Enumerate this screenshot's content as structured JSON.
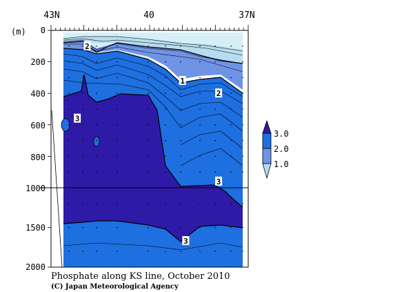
{
  "chart_data": {
    "type": "contour",
    "title": "Phosphate along KS line, October 2010",
    "credit": "(C) Japan Meteorological Agency",
    "x_axis": {
      "tick_labels": [
        "43N",
        "40",
        "37N"
      ],
      "tick_values": [
        43,
        40,
        37
      ],
      "range": [
        43,
        37
      ]
    },
    "y_axis": {
      "unit_label": "(m)",
      "tick_labels": [
        "0",
        "200",
        "400",
        "600",
        "800",
        "1000",
        "1500",
        "2000"
      ],
      "tick_values": [
        0,
        200,
        400,
        600,
        800,
        1000,
        1500,
        2000
      ],
      "range": [
        0,
        2000
      ],
      "scale_break_at": 1000
    },
    "colorbar": {
      "labels": [
        "3.0",
        "2.0",
        "1.0"
      ],
      "levels": [
        3.0,
        2.0,
        1.0
      ],
      "colors": [
        "#2e1aa6",
        "#1e6fe0",
        "#6f94e6",
        "#b7dcef"
      ]
    },
    "contour_labels": [
      {
        "text": "2",
        "lat": 41.9,
        "depth": 100
      },
      {
        "text": "1",
        "lat": 39.0,
        "depth": 320
      },
      {
        "text": "2",
        "lat": 37.9,
        "depth": 400
      },
      {
        "text": "3",
        "lat": 42.2,
        "depth": 560
      },
      {
        "text": "3",
        "lat": 37.9,
        "depth": 960
      },
      {
        "text": "3",
        "lat": 38.9,
        "depth": 1670
      }
    ],
    "fill_colors": {
      "bottom": "#2e1aa6",
      "upper_blue": "#1e6fe0",
      "mid_blue": "#6f94e6",
      "light_cyan": "#b7dcef",
      "lightest": "#d6eef6"
    }
  }
}
